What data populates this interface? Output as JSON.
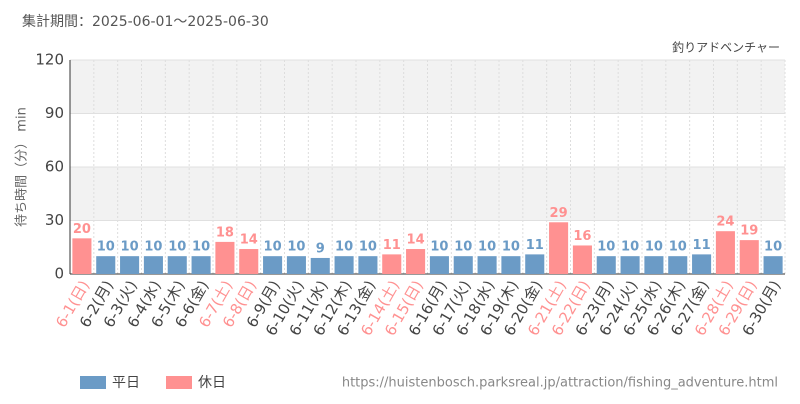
{
  "header": {
    "period": "集計期間：2025-06-01～2025-06-30",
    "url": "https://huistenbosch.parksreal.jp/attraction/fishing_adventure.html"
  },
  "chart_data": {
    "type": "bar",
    "subtitle": "釣りアドベンチャー",
    "y_label": "待ち時間（分） min",
    "categories": [
      "6-1(日)",
      "6-2(月)",
      "6-3(火)",
      "6-4(水)",
      "6-5(木)",
      "6-6(金)",
      "6-7(土)",
      "6-8(日)",
      "6-9(月)",
      "6-10(火)",
      "6-11(水)",
      "6-12(木)",
      "6-13(金)",
      "6-14(土)",
      "6-15(日)",
      "6-16(月)",
      "6-17(火)",
      "6-18(水)",
      "6-19(木)",
      "6-20(金)",
      "6-21(土)",
      "6-22(日)",
      "6-23(月)",
      "6-24(火)",
      "6-25(水)",
      "6-26(木)",
      "6-27(金)",
      "6-28(土)",
      "6-29(日)",
      "6-30(月)"
    ],
    "series": [
      {
        "name": "平日",
        "color": "#6b9bc6",
        "values": [
          null,
          10,
          10,
          10,
          10,
          10,
          null,
          null,
          10,
          10,
          9,
          10,
          10,
          null,
          null,
          10,
          10,
          10,
          10,
          11,
          null,
          null,
          10,
          10,
          10,
          10,
          11,
          null,
          null,
          10
        ]
      },
      {
        "name": "休日",
        "color": "#ff9191",
        "values": [
          20,
          null,
          null,
          null,
          null,
          null,
          18,
          14,
          null,
          null,
          null,
          null,
          null,
          11,
          14,
          null,
          null,
          null,
          null,
          null,
          29,
          16,
          null,
          null,
          null,
          null,
          null,
          24,
          19,
          null
        ]
      }
    ],
    "ylim": [
      0,
      120
    ],
    "yticks": [
      0,
      30,
      60,
      90,
      120
    ],
    "grid": true
  }
}
